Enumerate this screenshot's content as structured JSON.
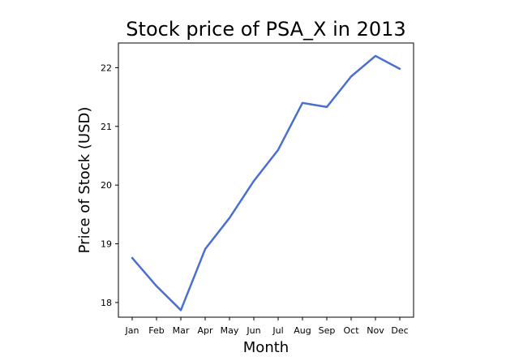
{
  "chart_data": {
    "type": "line",
    "title": "Stock price of PSA_X in 2013",
    "xlabel": "Month",
    "ylabel": "Price of Stock (USD)",
    "categories": [
      "Jan",
      "Feb",
      "Mar",
      "Apr",
      "May",
      "Jun",
      "Jul",
      "Aug",
      "Sep",
      "Oct",
      "Nov",
      "Dec"
    ],
    "series": [
      {
        "values": [
          18.76,
          18.28,
          17.87,
          18.91,
          19.44,
          20.07,
          20.6,
          21.4,
          21.33,
          21.85,
          22.2,
          21.98
        ],
        "color": "#4a6fcf"
      }
    ],
    "yticks": [
      18,
      19,
      20,
      21,
      22
    ],
    "ylim": [
      17.75,
      22.42
    ],
    "grid": false,
    "legend": "none"
  }
}
